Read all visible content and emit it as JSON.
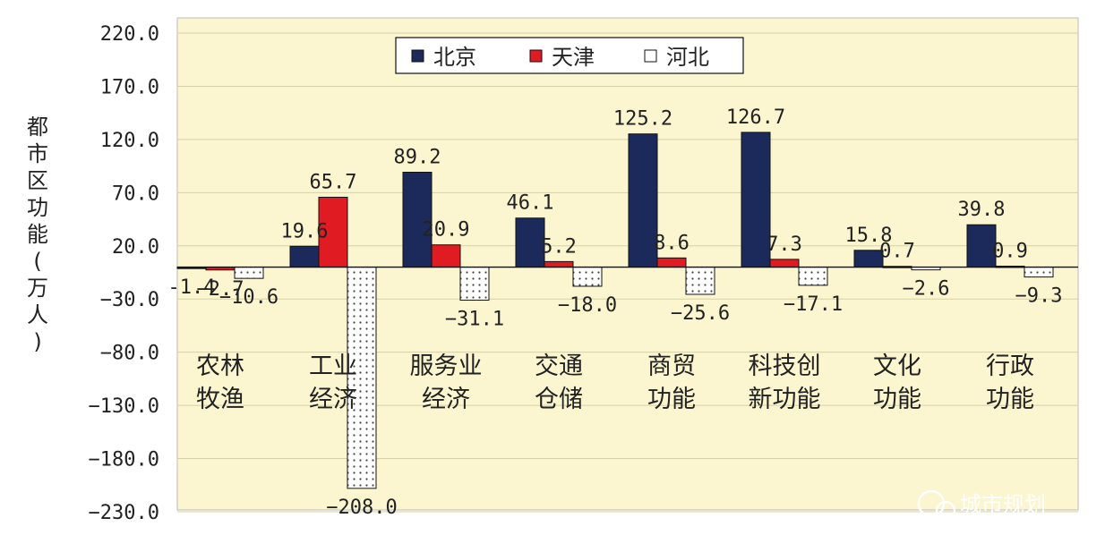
{
  "chart_data": {
    "type": "bar",
    "ylabel": "都市区功能(万人)",
    "categories": [
      [
        "农林",
        "牧渔"
      ],
      [
        "工业",
        "经济"
      ],
      [
        "服务业",
        "经济"
      ],
      [
        "交通",
        "仓储"
      ],
      [
        "商贸",
        "功能"
      ],
      [
        "科技创",
        "新功能"
      ],
      [
        "文化",
        "功能"
      ],
      [
        "行政",
        "功能"
      ]
    ],
    "series": [
      {
        "name": "北京",
        "color": "#1b2a5a",
        "values": [
          -1.4,
          19.6,
          89.2,
          46.1,
          125.2,
          126.7,
          15.8,
          39.8
        ],
        "labels": [
          "-1.4",
          "19.6",
          "89.2",
          "46.1",
          "125.2",
          "126.7",
          "15.8",
          "39.8"
        ]
      },
      {
        "name": "天津",
        "color": "#e11b22",
        "values": [
          -2.7,
          65.7,
          20.9,
          5.2,
          8.6,
          7.3,
          0.7,
          0.9
        ],
        "labels": [
          "−2.7",
          "65.7",
          "20.9",
          "5.2",
          "8.6",
          "7.3",
          "0.7",
          "0.9"
        ]
      },
      {
        "name": "河北",
        "color": "#ffffff",
        "pattern": "dotted",
        "values": [
          -10.6,
          -208.0,
          -31.1,
          -18.0,
          -25.6,
          -17.1,
          -2.6,
          -9.3
        ],
        "labels": [
          "−10.6",
          "−208.0",
          "−31.1",
          "−18.0",
          "−25.6",
          "−17.1",
          "−2.6",
          "−9.3"
        ]
      }
    ],
    "yticks": [
      "220.0",
      "170.0",
      "120.0",
      "70.0",
      "20.0",
      "−30.0",
      "−80.0",
      "−130.0",
      "−180.0",
      "−230.0"
    ],
    "ylim": [
      -230,
      220
    ],
    "grid": true,
    "plot_background": "#fbf6cf",
    "legend_position": "top-center"
  },
  "watermark": {
    "text": "城市规划"
  }
}
